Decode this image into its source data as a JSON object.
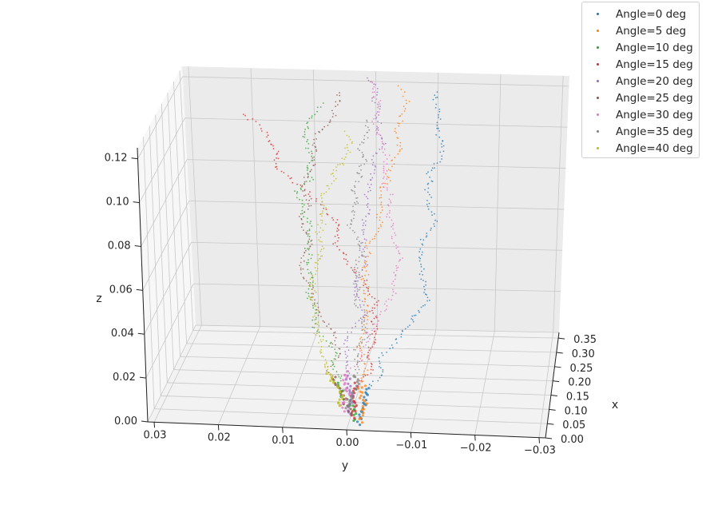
{
  "chart_data": {
    "type": "scatter",
    "projection": "3d",
    "title": "",
    "xlabel": "x",
    "ylabel": "y",
    "zlabel": "z",
    "xlim": [
      0.0,
      0.37
    ],
    "ylim": [
      0.03,
      -0.03
    ],
    "zlim": [
      0.0,
      0.125
    ],
    "x_ticks": [
      "0.00",
      "0.05",
      "0.10",
      "0.15",
      "0.20",
      "0.25",
      "0.30",
      "0.35"
    ],
    "y_ticks": [
      "0.03",
      "0.02",
      "0.01",
      "0.00",
      "−0.01",
      "−0.02",
      "−0.03"
    ],
    "z_ticks": [
      "0.00",
      "0.02",
      "0.04",
      "0.06",
      "0.08",
      "0.10",
      "0.12"
    ],
    "grid": true,
    "legend_position": "upper-right-outside",
    "series": [
      {
        "name": "Angle=0 deg",
        "color": "#1f77b4",
        "end": {
          "x": 0.33,
          "y": -0.01,
          "z": 0.125
        }
      },
      {
        "name": "Angle=5 deg",
        "color": "#ff7f0e",
        "end": {
          "x": 0.34,
          "y": -0.003,
          "z": 0.123
        }
      },
      {
        "name": "Angle=10 deg",
        "color": "#2ca02c",
        "end": {
          "x": 0.31,
          "y": 0.01,
          "z": 0.118
        }
      },
      {
        "name": "Angle=15 deg",
        "color": "#d62728",
        "end": {
          "x": 0.28,
          "y": 0.02,
          "z": 0.115
        }
      },
      {
        "name": "Angle=20 deg",
        "color": "#9467bd",
        "end": {
          "x": 0.36,
          "y": 0.0,
          "z": 0.124
        }
      },
      {
        "name": "Angle=25 deg",
        "color": "#8c564b",
        "end": {
          "x": 0.32,
          "y": 0.005,
          "z": 0.122
        }
      },
      {
        "name": "Angle=30 deg",
        "color": "#e377c2",
        "end": {
          "x": 0.35,
          "y": 0.001,
          "z": 0.124
        }
      },
      {
        "name": "Angle=35 deg",
        "color": "#7f7f7f",
        "end": {
          "x": 0.3,
          "y": 0.0,
          "z": 0.113
        }
      },
      {
        "name": "Angle=40 deg",
        "color": "#bcbd22",
        "end": {
          "x": 0.29,
          "y": 0.002,
          "z": 0.109
        }
      }
    ]
  }
}
